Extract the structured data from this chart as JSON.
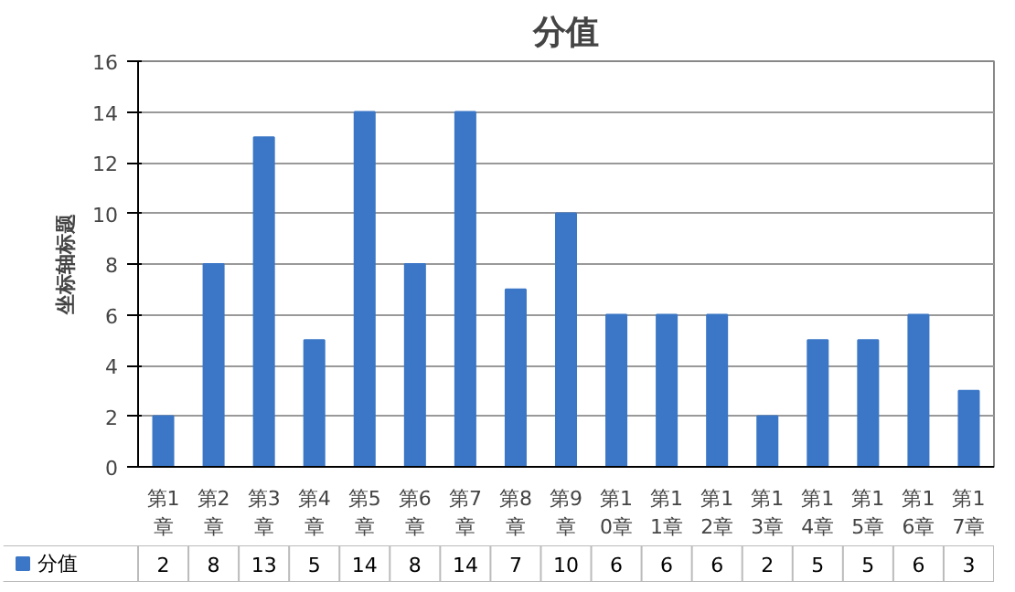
{
  "chart_data": {
    "type": "bar",
    "title": "分值",
    "ylabel": "坐标轴标题",
    "categories": [
      "第1章",
      "第2章",
      "第3章",
      "第4章",
      "第5章",
      "第6章",
      "第7章",
      "第8章",
      "第9章",
      "第10章",
      "第11章",
      "第12章",
      "第13章",
      "第14章",
      "第15章",
      "第16章",
      "第17章"
    ],
    "series": [
      {
        "name": "分值",
        "color": "#3b77c6",
        "values": [
          2,
          8,
          13,
          5,
          14,
          8,
          14,
          7,
          10,
          6,
          6,
          6,
          2,
          5,
          5,
          6,
          3
        ]
      }
    ],
    "ylim": [
      0,
      16
    ],
    "yticks": [
      0,
      2,
      4,
      6,
      8,
      10,
      12,
      14,
      16
    ],
    "grid": "y",
    "legend": "bottom",
    "data_labels": true
  }
}
